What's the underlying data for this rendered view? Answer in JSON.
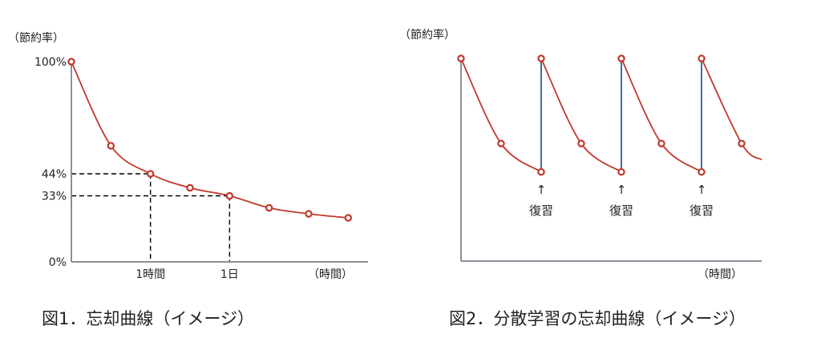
{
  "colors": {
    "curve": "#c0392b",
    "point_fill": "#ffffff",
    "review_line": "#1f3f8f",
    "axis": "#8a8f99",
    "guide": "#000000"
  },
  "figure1": {
    "caption": "図1．忘却曲線（イメージ）",
    "chart_data": {
      "type": "line",
      "ylabel": "（節約率）",
      "xlabel": "（時間）",
      "y_ticks": [
        "100%",
        "44%",
        "33%",
        "0%"
      ],
      "x_ticks": [
        "1時間",
        "1日"
      ],
      "ylim": [
        0,
        100
      ],
      "xlim": [
        0,
        7.5
      ],
      "series": [
        {
          "x": [
            0,
            1,
            2,
            3,
            4,
            5,
            6,
            7
          ],
          "y": [
            100,
            58,
            44,
            37,
            33,
            27,
            24,
            22
          ]
        }
      ],
      "guides": [
        {
          "x": 2,
          "y": 44
        },
        {
          "x": 4,
          "y": 33
        }
      ]
    }
  },
  "figure2": {
    "caption": "図2．分散学習の忘却曲線（イメージ）",
    "chart_data": {
      "type": "line",
      "ylabel": "（節約率）",
      "xlabel": "（時間）",
      "ylim": [
        0,
        100
      ],
      "xlim": [
        0,
        7.5
      ],
      "series": [
        {
          "x": [
            0,
            1,
            2,
            2,
            3,
            4,
            4,
            5,
            6,
            6,
            7,
            7.5
          ],
          "y": [
            100,
            58,
            44,
            100,
            58,
            44,
            100,
            58,
            44,
            100,
            58,
            50
          ]
        }
      ],
      "reviews": [
        {
          "x": 2,
          "y_from": 44,
          "y_to": 100,
          "label": "復習"
        },
        {
          "x": 4,
          "y_from": 44,
          "y_to": 100,
          "label": "復習"
        },
        {
          "x": 6,
          "y_from": 44,
          "y_to": 100,
          "label": "復習"
        }
      ]
    }
  }
}
